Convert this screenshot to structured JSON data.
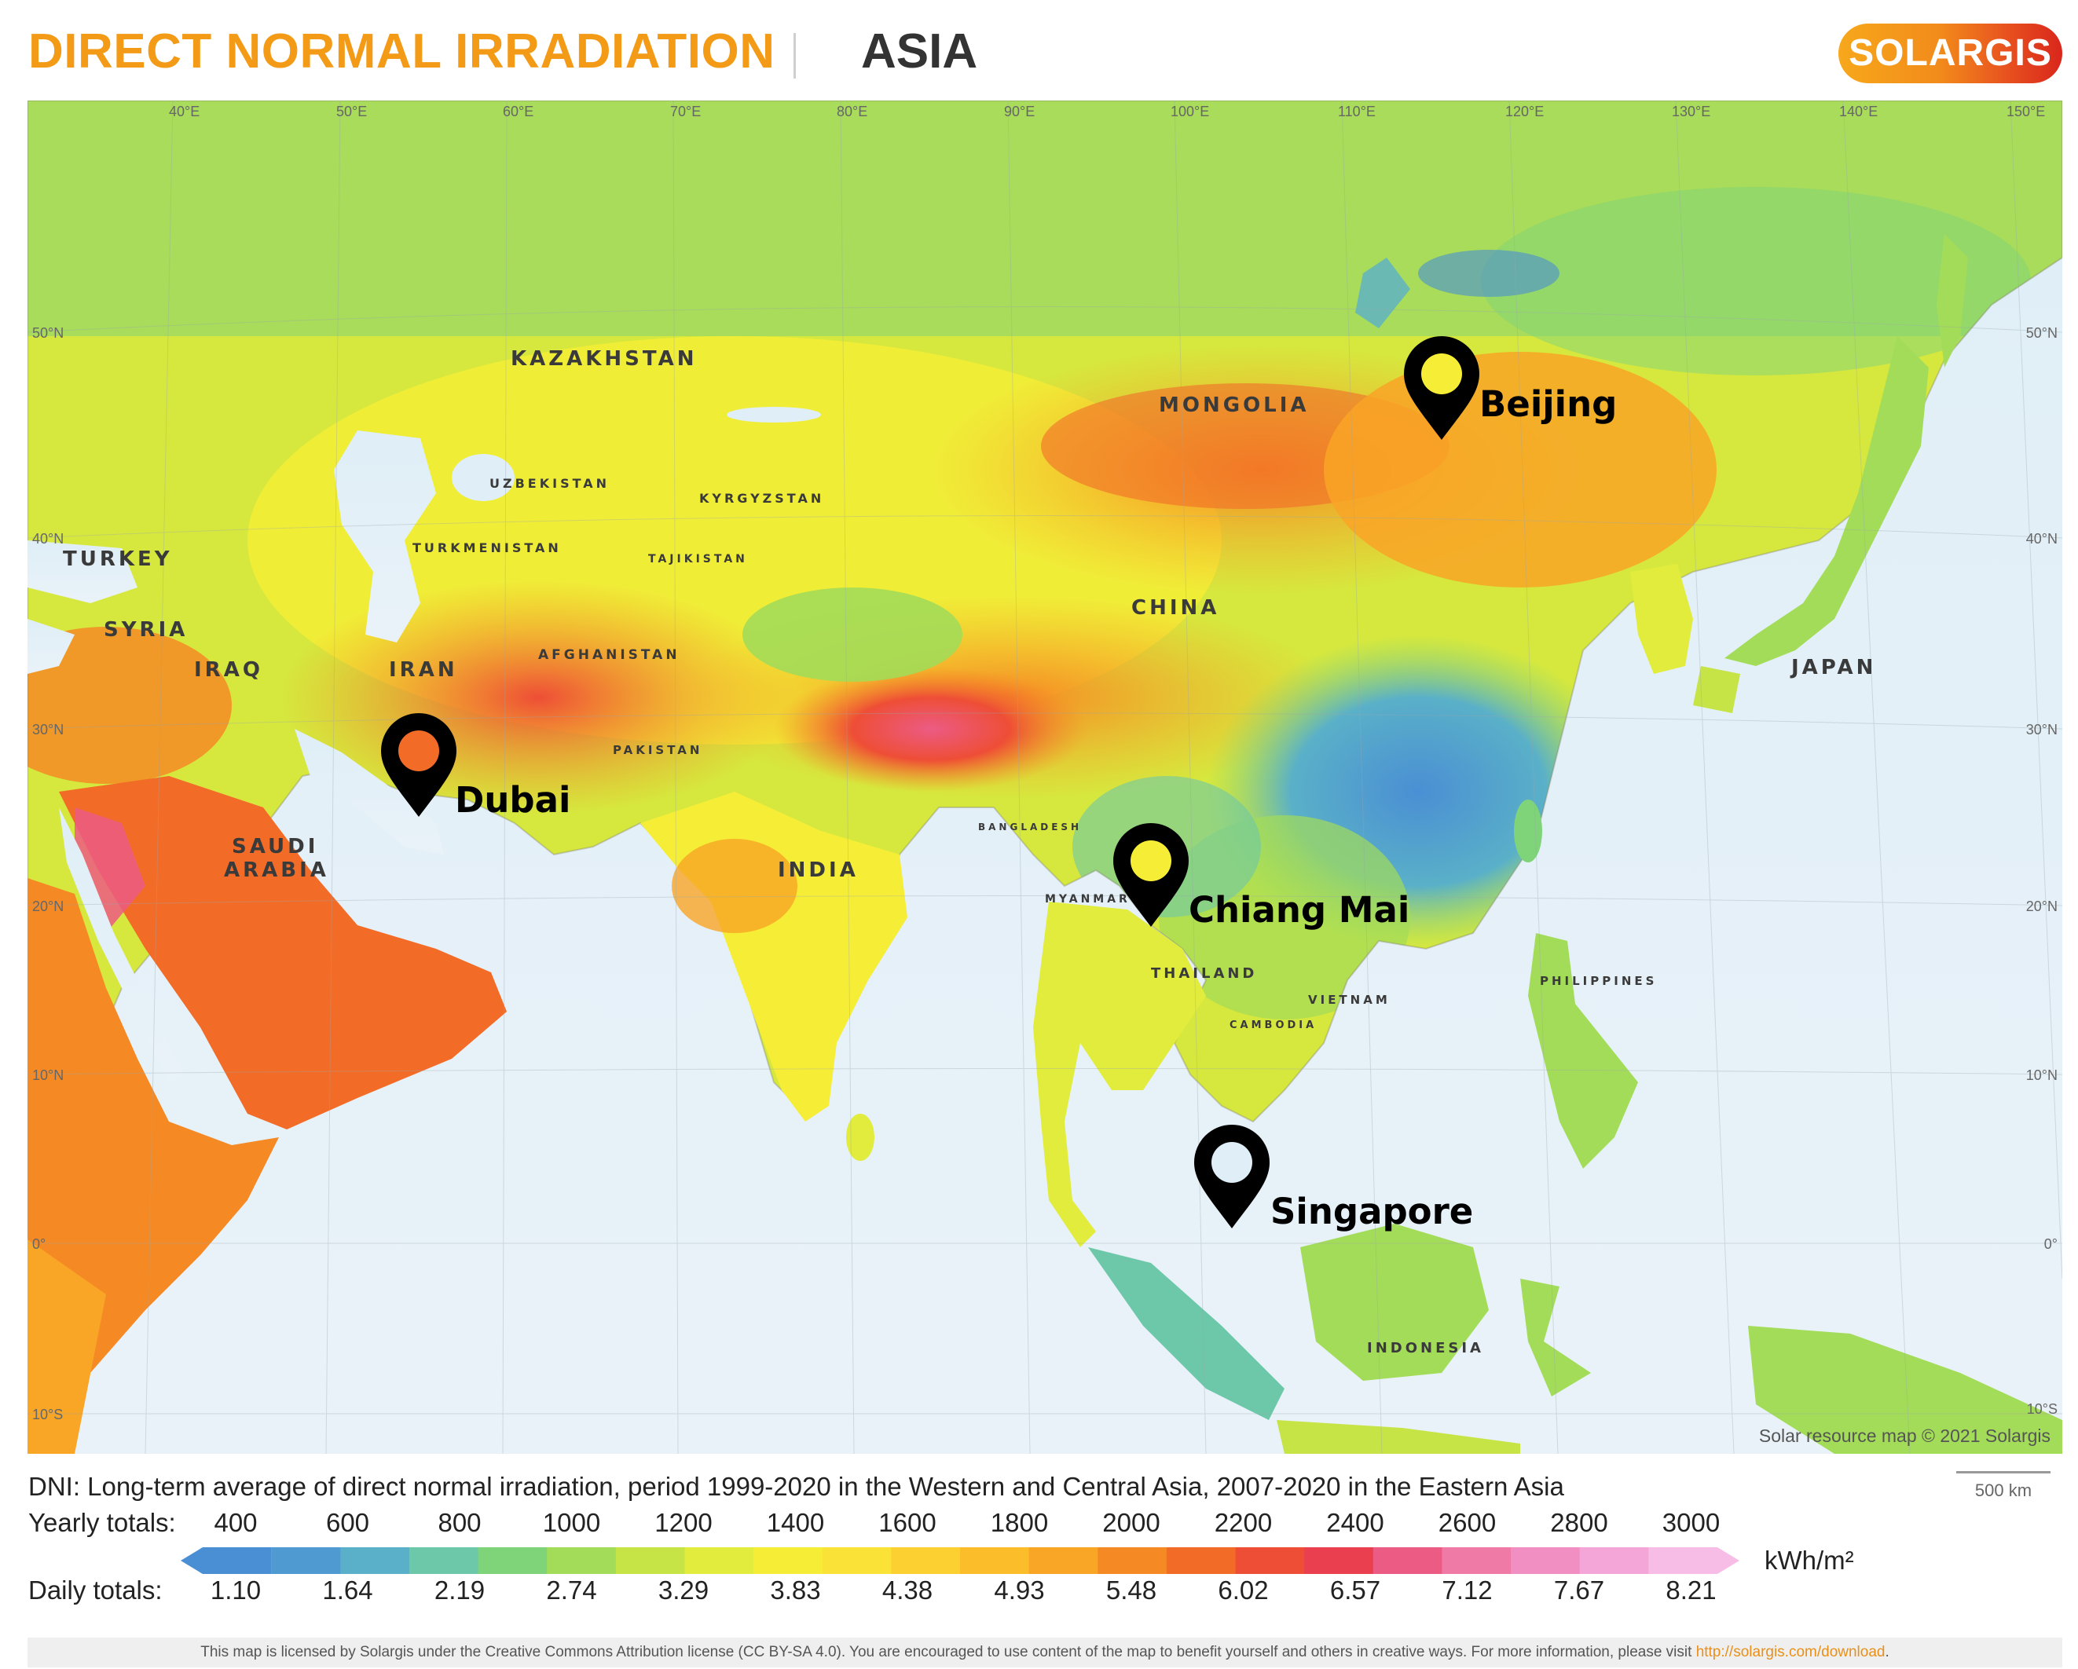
{
  "header": {
    "title": "DIRECT NORMAL IRRADIATION",
    "region": "ASIA",
    "logo_text": "SOLARGIS"
  },
  "map": {
    "grid_longitudes": [
      "40°E",
      "50°E",
      "60°E",
      "70°E",
      "80°E",
      "90°E",
      "100°E",
      "110°E",
      "120°E",
      "130°E",
      "140°E",
      "150°E"
    ],
    "grid_latitudes_left": [
      "50°N",
      "40°N",
      "30°N",
      "20°N",
      "10°N",
      "0°",
      "10°S"
    ],
    "grid_latitudes_right": [
      "50°N",
      "40°N",
      "30°N",
      "20°N",
      "10°N",
      "0°",
      "10°S"
    ],
    "countries": [
      "KAZAKHSTAN",
      "MONGOLIA",
      "UZBEKISTAN",
      "KYRGYZSTAN",
      "TURKMENISTAN",
      "TAJIKISTAN",
      "TURKEY",
      "SYRIA",
      "IRAQ",
      "IRAN",
      "AFGHANISTAN",
      "PAKISTAN",
      "CHINA",
      "JAPAN",
      "SAUDI",
      "ARABIA",
      "INDIA",
      "BANGLADESH",
      "MYANMAR",
      "THAILAND",
      "VIETNAM",
      "CAMBODIA",
      "PHILIPPINES",
      "INDONESIA"
    ],
    "cities": [
      "Beijing",
      "Dubai",
      "Chiang Mai",
      "Singapore"
    ],
    "pin_icon": "map-pin-icon",
    "copyright": "Solar resource map © 2021 Solargis"
  },
  "caption": "DNI: Long-term average of direct normal irradiation, period 1999-2020 in the Western and Central Asia, 2007-2020 in the Eastern Asia",
  "scale": {
    "label": "500 km"
  },
  "legend": {
    "yearly_label": "Yearly totals:",
    "daily_label": "Daily totals:",
    "yearly_values": [
      "400",
      "600",
      "800",
      "1000",
      "1200",
      "1400",
      "1600",
      "1800",
      "2000",
      "2200",
      "2400",
      "2600",
      "2800",
      "3000"
    ],
    "daily_values": [
      "1.10",
      "1.64",
      "2.19",
      "2.74",
      "3.29",
      "3.83",
      "4.38",
      "4.93",
      "5.48",
      "6.02",
      "6.57",
      "7.12",
      "7.67",
      "8.21"
    ],
    "unit": "kWh/m²",
    "colors": [
      "#4a8fd4",
      "#4f9ad0",
      "#5ab0c8",
      "#6cc8a8",
      "#7fd47a",
      "#a3dc58",
      "#c6e446",
      "#e2ec3c",
      "#f6ee36",
      "#fbe236",
      "#fcd030",
      "#fbbd2a",
      "#f9a526",
      "#f58a24",
      "#f26c28",
      "#ee4e36",
      "#ea3f4f",
      "#ec5b84",
      "#ef7aa6",
      "#f28fc2",
      "#f5a6d8",
      "#f8bde6"
    ]
  },
  "footer": {
    "text": "This map is licensed by Solargis under the Creative Commons Attribution license (CC BY-SA 4.0). You are encouraged to use content of the map to benefit yourself and others in creative ways. For more information, please visit ",
    "link": "http://solargis.com/download",
    "end": "."
  }
}
